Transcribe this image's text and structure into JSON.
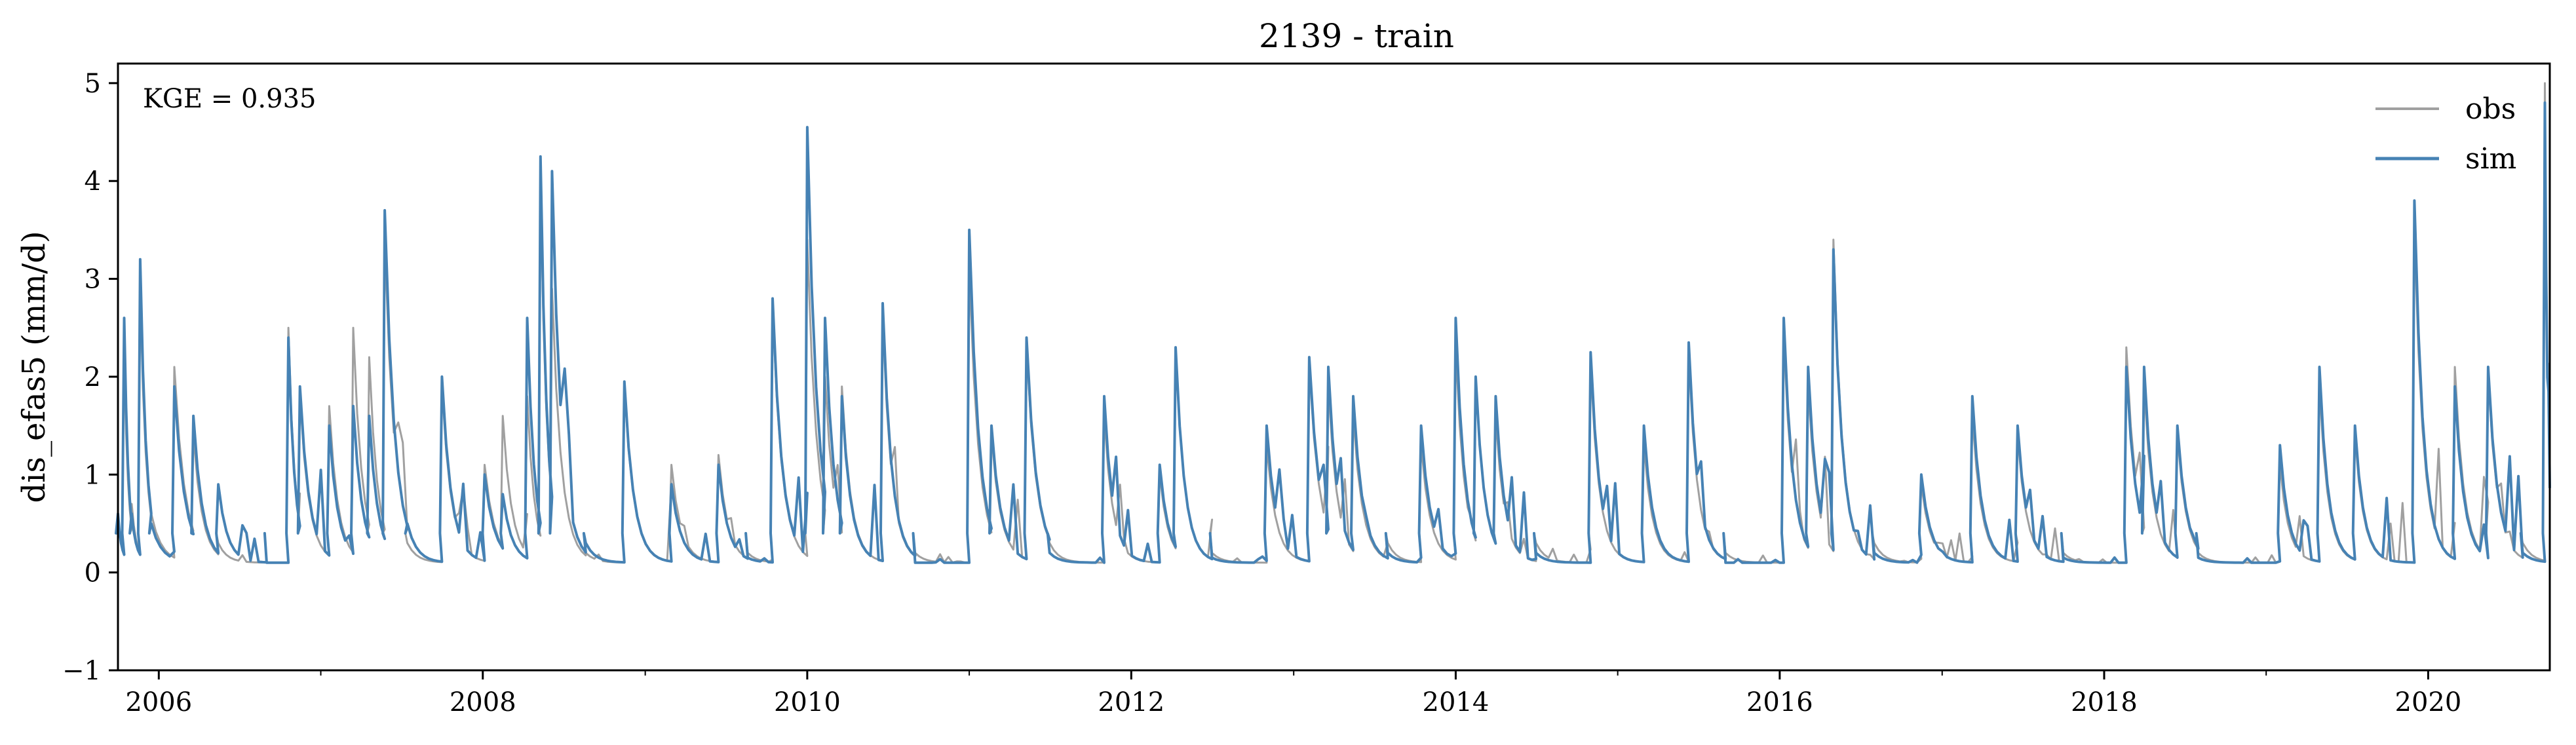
{
  "chart_data": {
    "type": "line",
    "title": "2139 - train",
    "xlabel": "",
    "ylabel": "dis_efas5 (mm/d)",
    "annotation": "KGE = 0.935",
    "xlim": [
      "2005-10-01",
      "2020-10-01"
    ],
    "ylim": [
      -1,
      5.2
    ],
    "yticks": [
      -1,
      0,
      1,
      2,
      3,
      4,
      5
    ],
    "ytick_labels": [
      "−1",
      "0",
      "1",
      "2",
      "3",
      "4",
      "5"
    ],
    "xticks": [
      "2006-01-01",
      "2008-01-01",
      "2010-01-01",
      "2012-01-01",
      "2014-01-01",
      "2016-01-01",
      "2018-01-01",
      "2020-01-01"
    ],
    "xtick_labels": [
      "2006",
      "2008",
      "2010",
      "2012",
      "2014",
      "2016",
      "2018",
      "2020"
    ],
    "grid": false,
    "legend_position": "top-right",
    "series": [
      {
        "name": "obs",
        "color": "#a0a0a0",
        "points": [
          [
            "2005-10-01",
            0.6
          ],
          [
            "2005-10-15",
            2.2
          ],
          [
            "2005-11-01",
            0.7
          ],
          [
            "2005-11-20",
            2.9
          ],
          [
            "2005-12-15",
            0.6
          ],
          [
            "2006-02-05",
            2.1
          ],
          [
            "2006-03-20",
            1.4
          ],
          [
            "2006-05-15",
            0.3
          ],
          [
            "2006-09-01",
            0.1
          ],
          [
            "2006-10-20",
            2.5
          ],
          [
            "2006-11-15",
            1.8
          ],
          [
            "2007-01-20",
            1.7
          ],
          [
            "2007-03-15",
            2.5
          ],
          [
            "2007-04-20",
            2.2
          ],
          [
            "2007-05-25",
            3.4
          ],
          [
            "2007-07-15",
            0.3
          ],
          [
            "2007-10-01",
            1.9
          ],
          [
            "2008-01-05",
            1.1
          ],
          [
            "2008-02-15",
            1.6
          ],
          [
            "2008-04-10",
            1.8
          ],
          [
            "2008-05-10",
            4.0
          ],
          [
            "2008-06-05",
            2.9
          ],
          [
            "2008-08-20",
            0.2
          ],
          [
            "2008-11-15",
            1.9
          ],
          [
            "2009-03-01",
            1.1
          ],
          [
            "2009-06-15",
            1.2
          ],
          [
            "2009-08-20",
            0.2
          ],
          [
            "2009-10-15",
            2.7
          ],
          [
            "2010-01-01",
            3.4
          ],
          [
            "2010-02-10",
            2.0
          ],
          [
            "2010-03-20",
            1.9
          ],
          [
            "2010-06-20",
            2.6
          ],
          [
            "2010-09-01",
            0.2
          ],
          [
            "2011-01-01",
            3.1
          ],
          [
            "2011-02-20",
            1.4
          ],
          [
            "2011-05-10",
            2.3
          ],
          [
            "2011-07-01",
            0.3
          ],
          [
            "2011-11-01",
            1.6
          ],
          [
            "2012-03-05",
            1.0
          ],
          [
            "2012-04-10",
            2.3
          ],
          [
            "2012-07-01",
            0.2
          ],
          [
            "2012-11-01",
            1.3
          ],
          [
            "2013-02-05",
            2.1
          ],
          [
            "2013-03-20",
            1.9
          ],
          [
            "2013-05-15",
            1.6
          ],
          [
            "2013-08-01",
            0.3
          ],
          [
            "2013-10-15",
            1.3
          ],
          [
            "2014-01-01",
            2.3
          ],
          [
            "2014-02-15",
            2.0
          ],
          [
            "2014-04-01",
            1.6
          ],
          [
            "2014-07-01",
            0.3
          ],
          [
            "2014-11-01",
            2.1
          ],
          [
            "2015-03-01",
            1.3
          ],
          [
            "2015-06-10",
            2.2
          ],
          [
            "2015-09-01",
            0.2
          ],
          [
            "2016-01-10",
            2.4
          ],
          [
            "2016-03-05",
            1.9
          ],
          [
            "2016-05-01",
            3.4
          ],
          [
            "2016-08-01",
            0.3
          ],
          [
            "2016-11-15",
            0.9
          ],
          [
            "2017-03-10",
            1.6
          ],
          [
            "2017-06-20",
            1.4
          ],
          [
            "2017-10-01",
            0.2
          ],
          [
            "2018-02-20",
            2.3
          ],
          [
            "2018-04-01",
            1.9
          ],
          [
            "2018-06-15",
            1.4
          ],
          [
            "2018-08-01",
            0.2
          ],
          [
            "2019-02-01",
            1.1
          ],
          [
            "2019-05-01",
            1.9
          ],
          [
            "2019-07-20",
            1.4
          ],
          [
            "2019-12-01",
            3.5
          ],
          [
            "2020-03-01",
            2.1
          ],
          [
            "2020-05-15",
            2.0
          ],
          [
            "2020-08-01",
            0.3
          ],
          [
            "2020-09-20",
            5.0
          ]
        ]
      },
      {
        "name": "sim",
        "color": "#4682b4",
        "points": [
          [
            "2005-10-01",
            0.6
          ],
          [
            "2005-10-15",
            2.6
          ],
          [
            "2005-11-01",
            0.6
          ],
          [
            "2005-11-20",
            3.2
          ],
          [
            "2005-12-15",
            0.5
          ],
          [
            "2006-02-05",
            1.9
          ],
          [
            "2006-03-20",
            1.6
          ],
          [
            "2006-05-15",
            0.9
          ],
          [
            "2006-09-01",
            0.1
          ],
          [
            "2006-10-20",
            2.4
          ],
          [
            "2006-11-15",
            1.9
          ],
          [
            "2007-01-20",
            1.5
          ],
          [
            "2007-03-15",
            1.7
          ],
          [
            "2007-04-20",
            1.6
          ],
          [
            "2007-05-25",
            3.7
          ],
          [
            "2007-07-15",
            0.5
          ],
          [
            "2007-10-01",
            2.0
          ],
          [
            "2008-01-05",
            1.0
          ],
          [
            "2008-02-15",
            0.8
          ],
          [
            "2008-04-10",
            2.6
          ],
          [
            "2008-05-10",
            4.25
          ],
          [
            "2008-06-05",
            4.1
          ],
          [
            "2008-08-20",
            0.3
          ],
          [
            "2008-11-15",
            1.95
          ],
          [
            "2009-03-01",
            0.9
          ],
          [
            "2009-06-15",
            1.1
          ],
          [
            "2009-08-20",
            0.15
          ],
          [
            "2009-10-15",
            2.8
          ],
          [
            "2010-01-01",
            4.55
          ],
          [
            "2010-02-10",
            2.6
          ],
          [
            "2010-03-20",
            1.8
          ],
          [
            "2010-06-20",
            2.75
          ],
          [
            "2010-09-01",
            0.1
          ],
          [
            "2011-01-01",
            3.5
          ],
          [
            "2011-02-20",
            1.5
          ],
          [
            "2011-05-10",
            2.4
          ],
          [
            "2011-07-01",
            0.2
          ],
          [
            "2011-11-01",
            1.8
          ],
          [
            "2012-03-05",
            1.1
          ],
          [
            "2012-04-10",
            2.3
          ],
          [
            "2012-07-01",
            0.15
          ],
          [
            "2012-11-01",
            1.5
          ],
          [
            "2013-02-05",
            2.2
          ],
          [
            "2013-03-20",
            2.1
          ],
          [
            "2013-05-15",
            1.8
          ],
          [
            "2013-08-01",
            0.2
          ],
          [
            "2013-10-15",
            1.5
          ],
          [
            "2014-01-01",
            2.6
          ],
          [
            "2014-02-15",
            2.0
          ],
          [
            "2014-04-01",
            1.8
          ],
          [
            "2014-07-01",
            0.2
          ],
          [
            "2014-11-01",
            2.25
          ],
          [
            "2015-03-01",
            1.5
          ],
          [
            "2015-06-10",
            2.35
          ],
          [
            "2015-09-01",
            0.1
          ],
          [
            "2016-01-10",
            2.6
          ],
          [
            "2016-03-05",
            2.1
          ],
          [
            "2016-05-01",
            3.3
          ],
          [
            "2016-08-01",
            0.2
          ],
          [
            "2016-11-15",
            1.0
          ],
          [
            "2017-03-10",
            1.8
          ],
          [
            "2017-06-20",
            1.5
          ],
          [
            "2017-10-01",
            0.15
          ],
          [
            "2018-02-20",
            2.1
          ],
          [
            "2018-04-01",
            2.1
          ],
          [
            "2018-06-15",
            1.5
          ],
          [
            "2018-08-01",
            0.15
          ],
          [
            "2019-02-01",
            1.3
          ],
          [
            "2019-05-01",
            2.1
          ],
          [
            "2019-07-20",
            1.5
          ],
          [
            "2019-12-01",
            3.8
          ],
          [
            "2020-03-01",
            1.9
          ],
          [
            "2020-05-15",
            2.1
          ],
          [
            "2020-08-01",
            0.2
          ],
          [
            "2020-09-20",
            4.8
          ]
        ]
      }
    ]
  }
}
